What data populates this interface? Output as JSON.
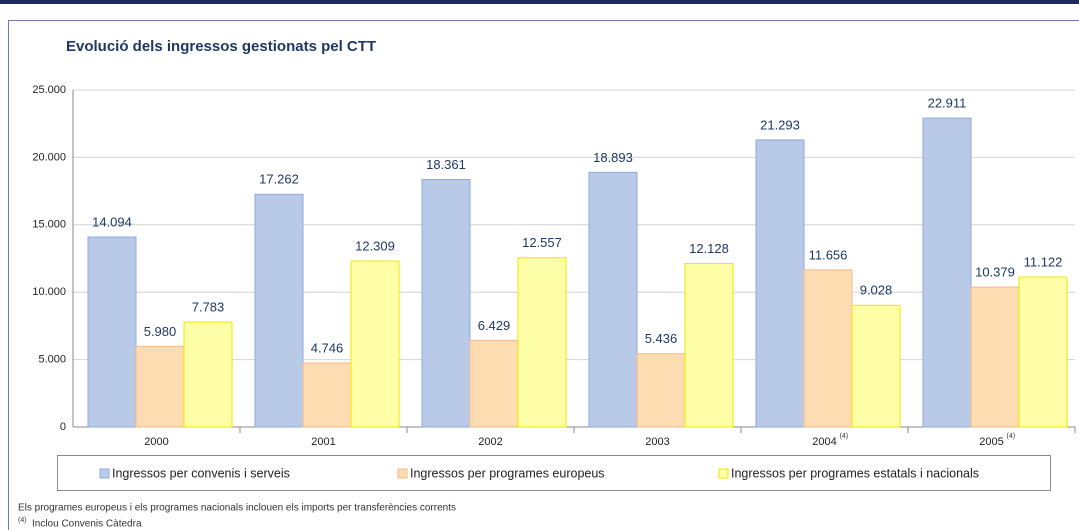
{
  "chart_data": {
    "type": "bar",
    "title": "Evolució dels ingressos gestionats pel CTT",
    "categories": [
      "2000",
      "2001",
      "2002",
      "2003",
      "2004",
      "2005"
    ],
    "category_notes": [
      null,
      null,
      null,
      null,
      "(4)",
      "(4)"
    ],
    "series": [
      {
        "name": "Ingressos per convenis i serveis",
        "color": "#b9c9e8",
        "stroke": "#8faadc",
        "values": [
          14094,
          17262,
          18361,
          18893,
          21293,
          22911
        ],
        "value_labels": [
          "14.094",
          "17.262",
          "18.361",
          "18.893",
          "21.293",
          "22.911"
        ]
      },
      {
        "name": "Ingressos per programes europeus",
        "color": "#fcdcb0",
        "stroke": "#f4b98a",
        "values": [
          5980,
          4746,
          6429,
          5436,
          11656,
          10379
        ],
        "value_labels": [
          "5.980",
          "4.746",
          "6.429",
          "5.436",
          "11.656",
          "10.379"
        ]
      },
      {
        "name": "Ingressos per programes estatals i nacionals",
        "color": "#ffffa8",
        "stroke": "#f2e600",
        "values": [
          7783,
          12309,
          12557,
          12128,
          9028,
          11122
        ],
        "value_labels": [
          "7.783",
          "12.309",
          "12.557",
          "12.128",
          "9.028",
          "11.122"
        ]
      }
    ],
    "ylim": [
      0,
      25000
    ],
    "yticks": [
      0,
      {
        "value": 5000,
        "label": "5.000"
      },
      {
        "value": 10000,
        "label": "10.000"
      },
      {
        "value": 15000,
        "label": "15.000"
      },
      {
        "value": 20000,
        "label": "20.000"
      },
      {
        "value": 25000,
        "label": "25.000"
      }
    ],
    "grid": true,
    "footnotes": [
      {
        "text": "Els programes europeus i els programes nacionals inclouen els imports per transferències corrents"
      },
      {
        "mark": "(4)",
        "text": "Inclou Convenis Càtedra"
      }
    ]
  }
}
